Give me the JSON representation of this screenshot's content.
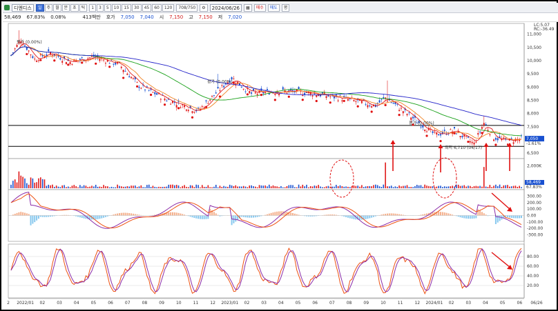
{
  "toolbar": {
    "stock_name": "디엔디스",
    "period_buttons": [
      "일",
      "주",
      "월",
      "분",
      "초",
      "틱"
    ],
    "interval_buttons": [
      "1",
      "3",
      "5",
      "10",
      "15",
      "30",
      "45",
      "60",
      "120"
    ],
    "zoom": "708/750",
    "date": "2024/06/26",
    "buy_label": "매수",
    "sell_label": "매도",
    "extra_label": "평"
  },
  "quote": {
    "volume": "58,469",
    "volume_pct": "67.83%",
    "change": "0.08%",
    "amount": "413백만",
    "open_label": "호가",
    "open": "7,050",
    "ask": "7,040",
    "high_label": "시",
    "high": "7,150",
    "low_label": "고",
    "low": "7,150",
    "close_label": "저",
    "close": "7,020"
  },
  "price_panel": {
    "tag_top": "LC:5.07",
    "tag_top2": "RC:-36.49",
    "y_ticks": [
      "11,000",
      "10,500",
      "10,000",
      "9,500",
      "9,000",
      "8,500",
      "8,000",
      "7,500",
      "7,050",
      "6,500"
    ],
    "current_price": "7,050",
    "current_change": "-1.61%",
    "annotations": [
      "평가 (0.00%)",
      "평가 (0.00%)",
      "평가 (0.00%)"
    ],
    "low_label": "최저 6,710 (04/17)"
  },
  "volume_panel": {
    "y_ticks": [
      "2,000K",
      "1,000K"
    ],
    "last_value": "58,469",
    "last_pct": "67.83%"
  },
  "macd_panel": {
    "y_ticks": [
      "300.00",
      "200.00",
      "100.00",
      "0.00",
      "-100.00",
      "-200.00",
      "-300.00"
    ]
  },
  "stoch_panel": {
    "y_ticks": [
      "80.00",
      "60.00",
      "40.00",
      "20.00"
    ]
  },
  "x_axis": [
    "2",
    "2022/01",
    "02",
    "03",
    "04",
    "05",
    "06",
    "07",
    "08",
    "09",
    "10",
    "11",
    "12",
    "2023/01",
    "02",
    "03",
    "04",
    "05",
    "06",
    "07",
    "08",
    "09",
    "10",
    "11",
    "12",
    "2024/01",
    "02",
    "03",
    "04",
    "05",
    "06",
    "06/26"
  ],
  "colors": {
    "up": "#e01818",
    "down": "#1850d0",
    "ma_long": "#2020c8",
    "ma_mid": "#18a018",
    "ma_short": "#f08020",
    "macd": "#8a2aa8",
    "signal": "#ee5010",
    "hist_pos": "#f4b08c",
    "hist_neg": "#88c8ee",
    "annotation": "#e01010"
  },
  "markers": {
    "buy_arrow_icon": "up-arrow-icon",
    "ellipse_icon": "dashed-ellipse-icon"
  }
}
